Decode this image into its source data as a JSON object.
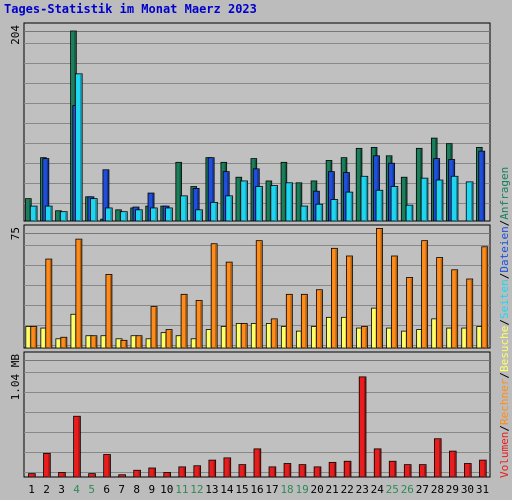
{
  "chart_data": {
    "type": "bar",
    "title": "Tages-Statistik im Monat Maerz 2023",
    "categories": [
      "1",
      "2",
      "3",
      "4",
      "5",
      "6",
      "7",
      "8",
      "9",
      "10",
      "11",
      "12",
      "13",
      "14",
      "15",
      "16",
      "17",
      "18",
      "19",
      "20",
      "21",
      "22",
      "23",
      "24",
      "25",
      "26",
      "27",
      "28",
      "29",
      "30",
      "31"
    ],
    "weekend_days": [
      "4",
      "5",
      "11",
      "12",
      "18",
      "19",
      "25",
      "26"
    ],
    "colors": {
      "background": "#bcbcbc",
      "plot": "#c0c0c0",
      "title": "#0000cc",
      "weekday": "#000000",
      "weekend": "#2e8b57",
      "anfragen": "#1a7f5a",
      "dateien": "#1f4fdb",
      "seiten": "#1fd5f0",
      "besuche": "#ffff66",
      "rechner": "#ff8c1a",
      "volumen": "#e81e1e"
    },
    "panels": [
      {
        "id": "top",
        "ylim": [
          0,
          204
        ],
        "ytick_label": "204",
        "series": [
          {
            "name": "Anfragen",
            "values": [
              24,
              68,
              11,
              204,
              26,
              2,
              12,
              14,
              16,
              16,
              63,
              37,
              68,
              63,
              47,
              67,
              43,
              63,
              41,
              43,
              65,
              68,
              78,
              79,
              70,
              47,
              78,
              89,
              83,
              0,
              79
            ]
          },
          {
            "name": "Dateien",
            "values": [
              0,
              67,
              0,
              124,
              26,
              55,
              0,
              15,
              30,
              16,
              0,
              35,
              68,
              53,
              0,
              56,
              0,
              0,
              0,
              32,
              53,
              52,
              0,
              70,
              62,
              0,
              0,
              67,
              66,
              0,
              75
            ]
          },
          {
            "name": "Seiten",
            "values": [
              16,
              16,
              10,
              158,
              24,
              14,
              10,
              12,
              14,
              14,
              27,
              12,
              20,
              27,
              43,
              37,
              38,
              41,
              16,
              18,
              23,
              31,
              48,
              33,
              37,
              17,
              46,
              44,
              48,
              42,
              0
            ]
          }
        ]
      },
      {
        "id": "mid",
        "ylim": [
          0,
          75
        ],
        "ytick_label": "75",
        "series": [
          {
            "name": "Besuche",
            "values": [
              14,
              13,
              6,
              22,
              8,
              8,
              6,
              8,
              6,
              10,
              8,
              6,
              12,
              14,
              16,
              16,
              16,
              14,
              11,
              14,
              20,
              20,
              13,
              26,
              13,
              11,
              12,
              19,
              13,
              13,
              14
            ]
          },
          {
            "name": "Rechner",
            "values": [
              14,
              58,
              7,
              71,
              8,
              48,
              5,
              8,
              27,
              12,
              35,
              31,
              68,
              56,
              16,
              70,
              19,
              35,
              35,
              38,
              65,
              60,
              14,
              78,
              60,
              46,
              70,
              59,
              51,
              45,
              66
            ]
          }
        ]
      },
      {
        "id": "bot",
        "ylim": [
          0,
          1.04
        ],
        "ytick_label": "1.04 MB",
        "series": [
          {
            "name": "Volumen",
            "values": [
              0.03,
              0.21,
              0.04,
              0.54,
              0.03,
              0.2,
              0.02,
              0.06,
              0.08,
              0.04,
              0.09,
              0.1,
              0.15,
              0.17,
              0.11,
              0.25,
              0.09,
              0.12,
              0.11,
              0.09,
              0.13,
              0.14,
              0.89,
              0.25,
              0.14,
              0.11,
              0.11,
              0.34,
              0.23,
              0.12,
              0.15
            ]
          }
        ]
      }
    ],
    "legend": {
      "placement": "right-vertical",
      "items": [
        {
          "text": "Volumen",
          "color_key": "volumen"
        },
        {
          "text": "Rechner",
          "color_key": "rechner"
        },
        {
          "text": "Besuche",
          "color_key": "besuche"
        },
        {
          "text": "Seiten",
          "color_key": "seiten"
        },
        {
          "text": "Dateien",
          "color_key": "dateien"
        },
        {
          "text": "Anfragen",
          "color_key": "anfragen"
        }
      ],
      "separator": "/"
    },
    "grid": true
  }
}
